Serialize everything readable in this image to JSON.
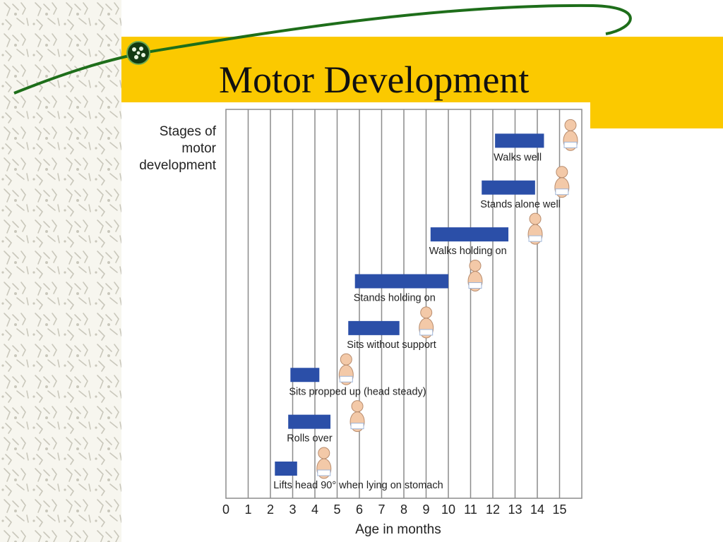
{
  "slide": {
    "title": "Motor Development",
    "accent_color": "#fbc900",
    "curve_color": "#1e6e1a"
  },
  "chart_data": {
    "type": "bar",
    "orientation": "horizontal-range",
    "ylabel_lines": [
      "Stages of",
      "motor",
      "development"
    ],
    "xlabel": "Age in months",
    "xlim": [
      0,
      16
    ],
    "x_ticks": [
      0,
      1,
      2,
      3,
      4,
      5,
      6,
      7,
      8,
      9,
      10,
      11,
      12,
      13,
      14,
      15
    ],
    "grid": true,
    "bar_color": "#2b4fa8",
    "stages": [
      {
        "label": "Lifts head 90° when lying on stomach",
        "start": 2.2,
        "end": 3.2
      },
      {
        "label": "Rolls over",
        "start": 2.8,
        "end": 4.7
      },
      {
        "label": "Sits propped up (head steady)",
        "start": 2.9,
        "end": 4.2
      },
      {
        "label": "Sits without support",
        "start": 5.5,
        "end": 7.8
      },
      {
        "label": "Stands holding on",
        "start": 5.8,
        "end": 10.0
      },
      {
        "label": "Walks holding on",
        "start": 9.2,
        "end": 12.7
      },
      {
        "label": "Stands alone well",
        "start": 11.5,
        "end": 13.9
      },
      {
        "label": "Walks well",
        "start": 12.1,
        "end": 14.3
      }
    ]
  }
}
